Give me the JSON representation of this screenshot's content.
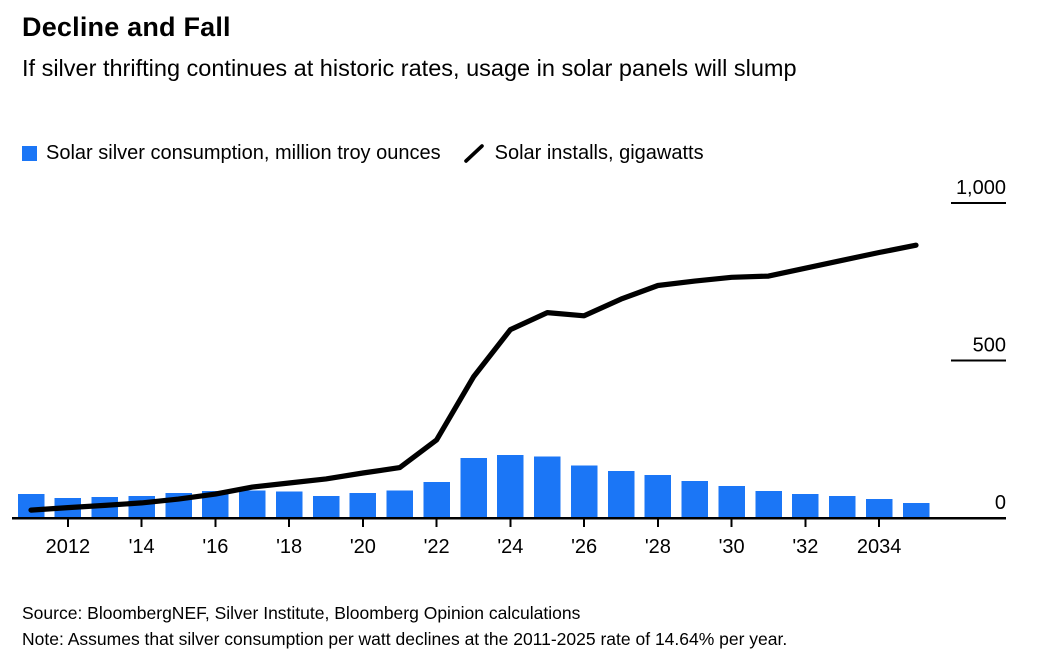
{
  "header": {
    "title": "Decline and Fall",
    "subtitle": "If silver thrifting continues at historic rates, usage in solar panels will slump"
  },
  "legend": {
    "bars_label": "Solar silver consumption, million troy ounces",
    "line_label": "Solar installs, gigawatts"
  },
  "colors": {
    "bar_blue": "#1b76f6",
    "line_black": "#000000",
    "axis": "#000000"
  },
  "chart_data": {
    "type": "composite",
    "x": [
      2011,
      2012,
      2013,
      2014,
      2015,
      2016,
      2017,
      2018,
      2019,
      2020,
      2021,
      2022,
      2023,
      2024,
      2025,
      2026,
      2027,
      2028,
      2029,
      2030,
      2031,
      2032,
      2033,
      2034,
      2035
    ],
    "series": [
      {
        "name": "Solar silver consumption, million troy ounces",
        "type": "bar",
        "color": "#1b76f6",
        "values": [
          77,
          64,
          67,
          70,
          80,
          86,
          87,
          84,
          70,
          80,
          87,
          115,
          190,
          200,
          195,
          166,
          150,
          137,
          118,
          102,
          86,
          77,
          70,
          61,
          48
        ]
      },
      {
        "name": "Solar installs, gigawatts",
        "type": "line",
        "color": "#000000",
        "values": [
          25,
          33,
          40,
          48,
          60,
          76,
          98,
          111,
          124,
          143,
          160,
          248,
          448,
          598,
          652,
          642,
          695,
          738,
          752,
          764,
          768,
          793,
          818,
          843,
          866
        ]
      }
    ],
    "ylim": [
      0,
      1000
    ],
    "grid": false,
    "axis_side": "right",
    "legend_position": "top",
    "y_ticks": [
      {
        "value": 1000,
        "label": "1,000"
      },
      {
        "value": 500,
        "label": "500"
      },
      {
        "value": 0,
        "label": "0"
      }
    ],
    "x_ticks": [
      {
        "year": 2012,
        "label": "2012"
      },
      {
        "year": 2014,
        "label": "'14"
      },
      {
        "year": 2016,
        "label": "'16"
      },
      {
        "year": 2018,
        "label": "'18"
      },
      {
        "year": 2020,
        "label": "'20"
      },
      {
        "year": 2022,
        "label": "'22"
      },
      {
        "year": 2024,
        "label": "'24"
      },
      {
        "year": 2026,
        "label": "'26"
      },
      {
        "year": 2028,
        "label": "'28"
      },
      {
        "year": 2030,
        "label": "'30"
      },
      {
        "year": 2032,
        "label": "'32"
      },
      {
        "year": 2034,
        "label": "2034"
      }
    ]
  },
  "footer": {
    "source": "Source: BloombergNEF, Silver Institute, Bloomberg Opinion calculations",
    "note": "Note: Assumes that silver consumption per watt declines at the 2011-2025 rate of 14.64% per year."
  }
}
